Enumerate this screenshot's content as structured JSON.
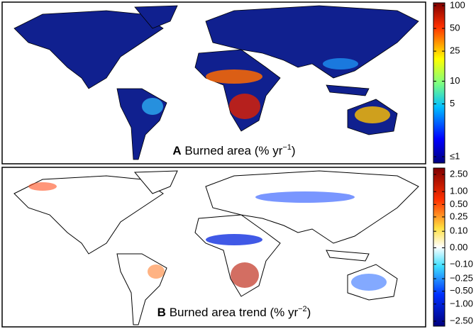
{
  "panels": [
    {
      "letter": "A",
      "title": "Burned area (% yr",
      "superscript": "−1",
      "suffix": ")",
      "colorbar": {
        "scale": "log",
        "ticks": [
          100,
          50,
          25,
          10,
          5,
          {
            "value": 1,
            "label": "≤1"
          }
        ]
      }
    },
    {
      "letter": "B",
      "title": "Burned area trend (% yr",
      "superscript": "−2",
      "suffix": ")",
      "colorbar": {
        "scale": "symlog",
        "ticks": [
          {
            "value": 2.5,
            "label": "2.50"
          },
          {
            "value": 1,
            "label": "1.00"
          },
          {
            "value": 0.5,
            "label": "0.50"
          },
          {
            "value": 0.25,
            "label": "0.25"
          },
          {
            "value": 0.1,
            "label": "0.10"
          },
          {
            "value": 0,
            "label": "0.00"
          },
          {
            "value": -0.1,
            "label": "−0.10"
          },
          {
            "value": -0.25,
            "label": "−0.25"
          },
          {
            "value": -0.5,
            "label": "−0.50"
          },
          {
            "value": -1,
            "label": "−1.00"
          },
          {
            "value": -2.5,
            "label": "−2.50"
          }
        ]
      }
    }
  ]
}
